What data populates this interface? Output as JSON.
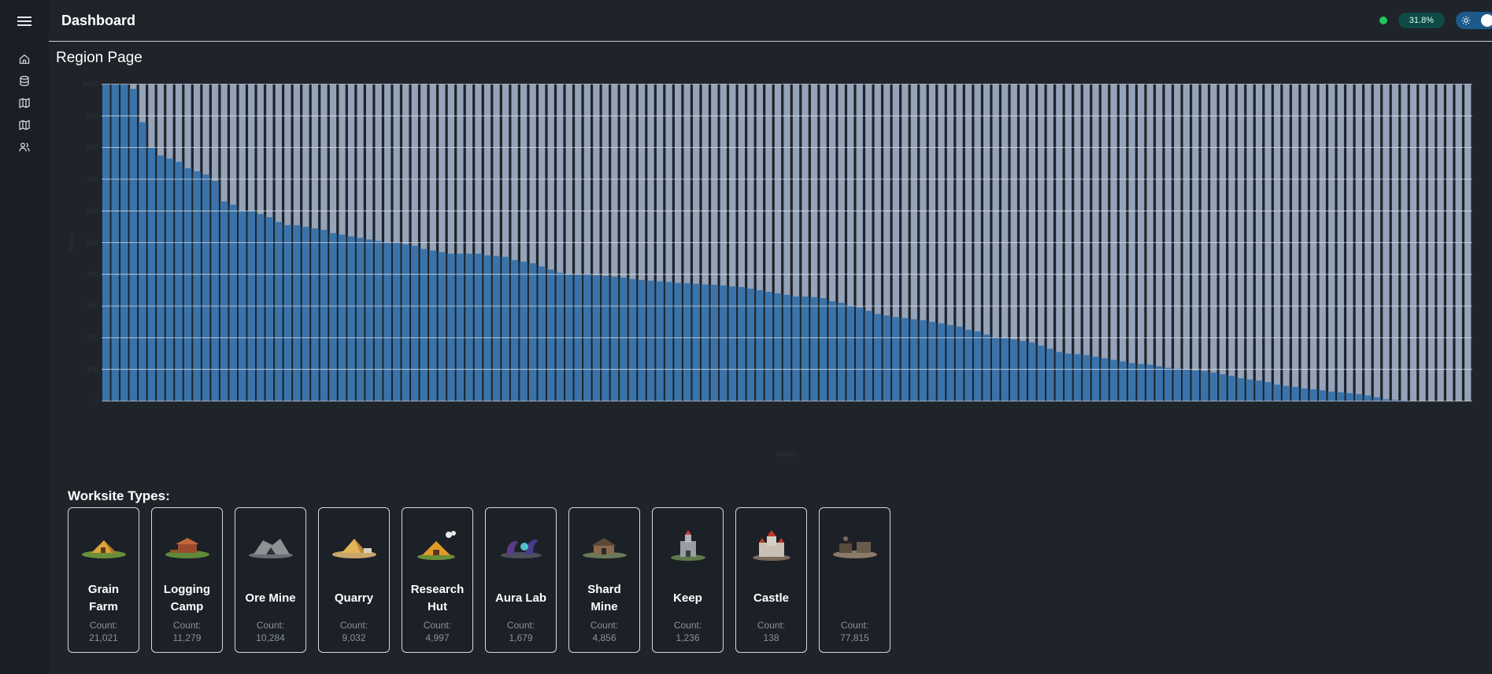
{
  "header": {
    "title": "Dashboard",
    "badge": "31.8%"
  },
  "page": {
    "title": "Region Page"
  },
  "sidebar": {
    "icons": [
      "menu-icon",
      "home-icon",
      "database-icon",
      "map-icon",
      "map-icon",
      "users-icon"
    ]
  },
  "colors": {
    "bar": "#3a73aa",
    "bar_bg": "#94a3b8",
    "status": "#22c55e",
    "accent": "#0f4b45"
  },
  "chart_data": {
    "type": "bar",
    "xlabel": "Region",
    "ylabel": "Price",
    "ylim": [
      0,
      1000
    ],
    "yticks": [
      0,
      100,
      200,
      300,
      400,
      500,
      600,
      700,
      800,
      900,
      1000
    ],
    "max_value": 1000,
    "values": [
      1000,
      1000,
      1000,
      985,
      880,
      800,
      775,
      765,
      755,
      735,
      725,
      715,
      695,
      630,
      620,
      600,
      600,
      590,
      580,
      565,
      555,
      555,
      550,
      545,
      540,
      530,
      525,
      520,
      515,
      510,
      505,
      500,
      500,
      495,
      490,
      480,
      475,
      470,
      465,
      465,
      465,
      465,
      460,
      458,
      455,
      445,
      440,
      435,
      425,
      415,
      405,
      400,
      400,
      400,
      397,
      395,
      393,
      390,
      385,
      382,
      380,
      378,
      376,
      373,
      372,
      370,
      368,
      367,
      365,
      362,
      360,
      355,
      350,
      345,
      340,
      335,
      330,
      330,
      328,
      325,
      315,
      310,
      300,
      295,
      285,
      275,
      270,
      265,
      262,
      258,
      255,
      250,
      245,
      240,
      235,
      225,
      220,
      210,
      200,
      198,
      195,
      190,
      185,
      175,
      165,
      155,
      150,
      148,
      145,
      140,
      135,
      130,
      125,
      120,
      117,
      115,
      110,
      105,
      102,
      100,
      97,
      95,
      90,
      85,
      80,
      72,
      68,
      65,
      60,
      52,
      48,
      45,
      40,
      37,
      34,
      30,
      28,
      25,
      22,
      18,
      12,
      6,
      4,
      2,
      1,
      0,
      0,
      0,
      0,
      0,
      0
    ]
  },
  "worksites": {
    "heading": "Worksite Types:",
    "count_label": "Count:",
    "items": [
      {
        "name": "Grain Farm",
        "count": "21,021",
        "icon": "grain-farm-icon"
      },
      {
        "name": "Logging Camp",
        "count": "11,279",
        "icon": "logging-camp-icon"
      },
      {
        "name": "Ore Mine",
        "count": "10,284",
        "icon": "ore-mine-icon"
      },
      {
        "name": "Quarry",
        "count": "9,032",
        "icon": "quarry-icon"
      },
      {
        "name": "Research Hut",
        "count": "4,997",
        "icon": "research-hut-icon"
      },
      {
        "name": "Aura Lab",
        "count": "1,679",
        "icon": "aura-lab-icon"
      },
      {
        "name": "Shard Mine",
        "count": "4,856",
        "icon": "shard-mine-icon"
      },
      {
        "name": "Keep",
        "count": "1,236",
        "icon": "keep-icon"
      },
      {
        "name": "Castle",
        "count": "138",
        "icon": "castle-icon"
      },
      {
        "name": "",
        "count": "77,815",
        "icon": "workshop-icon"
      }
    ]
  }
}
